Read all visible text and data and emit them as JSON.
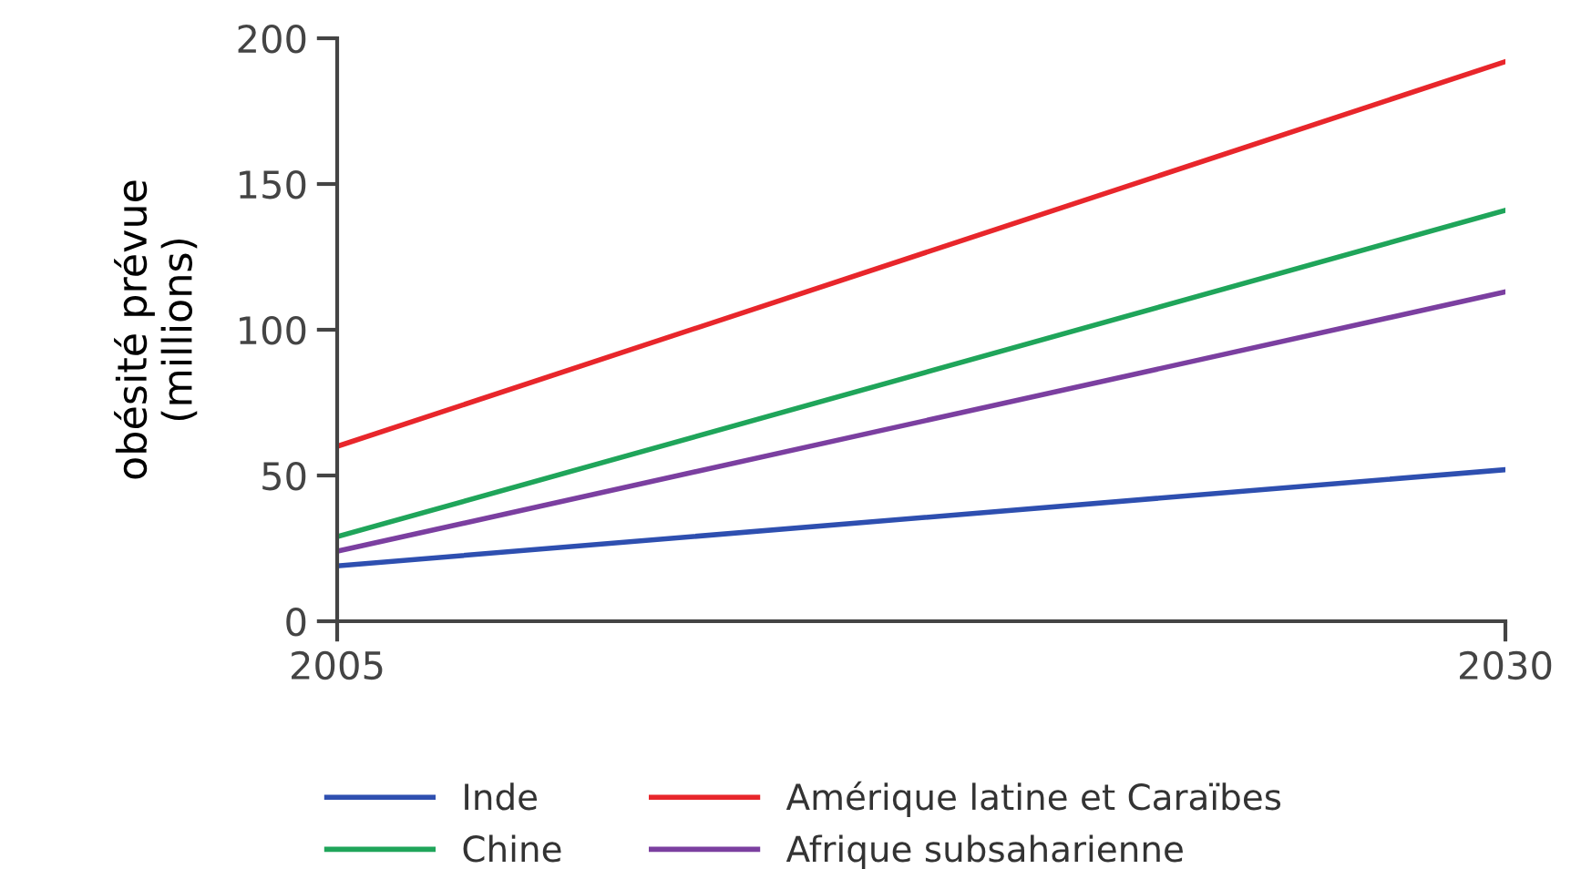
{
  "chart_data": {
    "type": "line",
    "ylabel": "obésité prévue\n(millions)",
    "x": [
      2005,
      2030
    ],
    "xlim": [
      2005,
      2030
    ],
    "xticks": [
      2005,
      2030
    ],
    "ylim": [
      0,
      200
    ],
    "yticks": [
      0,
      50,
      100,
      150,
      200
    ],
    "grid": false,
    "legend": "bottom",
    "marker": "none",
    "line_style": "solid",
    "series": [
      {
        "name": "Inde",
        "color": "#2e4fb0",
        "values": [
          19,
          52
        ]
      },
      {
        "name": "Chine",
        "color": "#1fa55a",
        "values": [
          29,
          141
        ]
      },
      {
        "name": "Amérique latine et Caraïbes",
        "color": "#e8262b",
        "values": [
          60,
          192
        ]
      },
      {
        "name": "Afrique subsaharienne",
        "color": "#7b3fa0",
        "values": [
          24,
          113
        ]
      }
    ]
  }
}
